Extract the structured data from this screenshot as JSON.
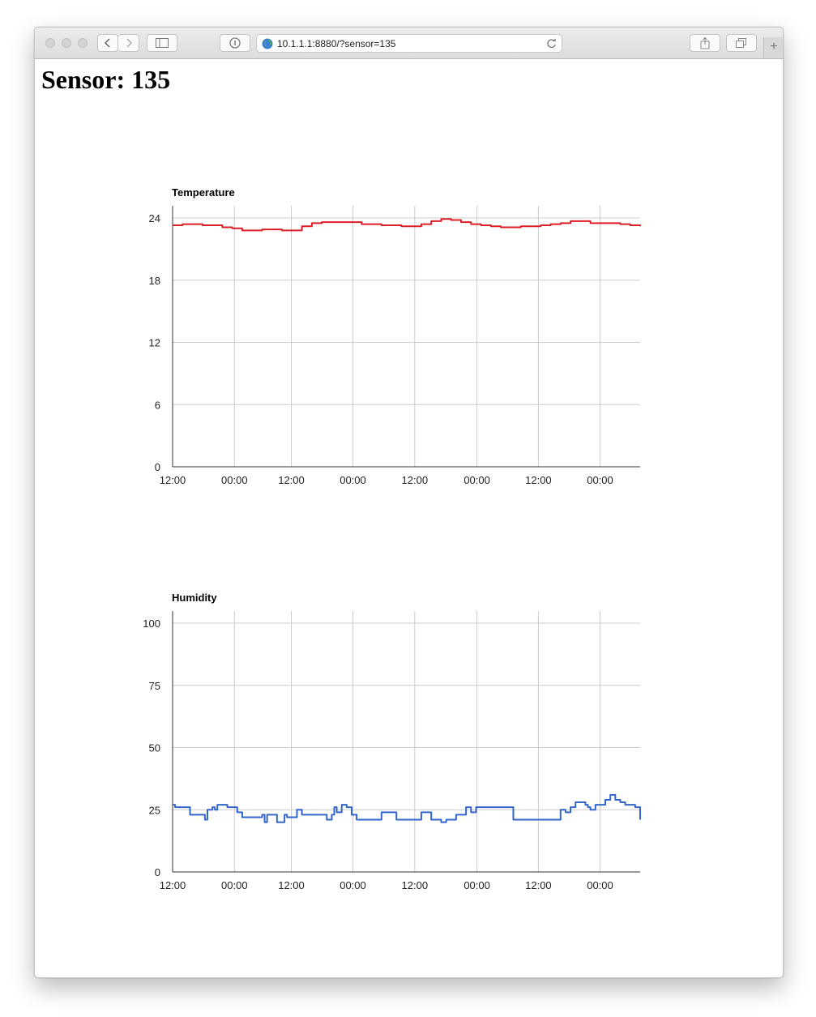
{
  "browser": {
    "url": "10.1.1.1:8880/?sensor=135"
  },
  "page": {
    "heading": "Sensor: 135"
  },
  "chart_data": [
    {
      "type": "line",
      "title": "Temperature",
      "ylim": [
        0,
        24
      ],
      "yticks": [
        "0",
        "6",
        "12",
        "18",
        "24"
      ],
      "xticks": [
        "12:00",
        "00:00",
        "12:00",
        "00:00",
        "12:00",
        "00:00",
        "12:00",
        "00:00"
      ],
      "legend_position": "bottom",
      "grid": true,
      "series": [
        {
          "name": "Temperature",
          "color": "#dc1f26",
          "x": [
            0,
            4,
            8,
            12,
            16,
            20,
            24,
            28,
            32,
            36,
            40,
            44,
            48,
            52,
            56,
            60,
            64,
            68,
            72,
            76,
            80,
            84,
            88,
            92,
            96,
            100,
            104,
            108,
            112,
            116,
            120,
            124,
            128,
            132,
            136,
            140,
            144,
            148,
            152,
            156,
            160,
            164,
            168,
            172,
            176,
            180,
            184,
            188
          ],
          "y": [
            23.3,
            23.4,
            23.4,
            23.3,
            23.3,
            23.1,
            23.0,
            22.8,
            22.8,
            22.9,
            22.9,
            22.8,
            22.8,
            23.2,
            23.5,
            23.6,
            23.6,
            23.6,
            23.6,
            23.4,
            23.4,
            23.3,
            23.3,
            23.2,
            23.2,
            23.4,
            23.7,
            23.9,
            23.8,
            23.6,
            23.4,
            23.3,
            23.2,
            23.1,
            23.1,
            23.2,
            23.2,
            23.3,
            23.4,
            23.5,
            23.7,
            23.7,
            23.5,
            23.5,
            23.5,
            23.4,
            23.3,
            23.2
          ]
        }
      ]
    },
    {
      "type": "line",
      "title": "Humidity",
      "ylim": [
        0,
        100
      ],
      "yticks": [
        "0",
        "25",
        "50",
        "75",
        "100"
      ],
      "xticks": [
        "12:00",
        "00:00",
        "12:00",
        "00:00",
        "12:00",
        "00:00",
        "12:00",
        "00:00"
      ],
      "legend_position": "bottom",
      "grid": true,
      "series": [
        {
          "name": "Humidity",
          "color": "#3366cc",
          "x": [
            0,
            1,
            5,
            7,
            12,
            13,
            14,
            16,
            17,
            18,
            20,
            22,
            24,
            26,
            28,
            34,
            36,
            37,
            38,
            40,
            42,
            44,
            45,
            46,
            48,
            50,
            52,
            56,
            62,
            63,
            64,
            65,
            66,
            68,
            70,
            72,
            74,
            80,
            84,
            90,
            98,
            100,
            104,
            108,
            110,
            112,
            114,
            116,
            118,
            120,
            122,
            124,
            125,
            126,
            128,
            136,
            137,
            138,
            148,
            154,
            156,
            157,
            158,
            160,
            162,
            166,
            167,
            168,
            170,
            172,
            174,
            176,
            178,
            180,
            182,
            184,
            186,
            187,
            188
          ],
          "y": [
            27,
            26,
            26,
            23,
            23,
            21,
            25,
            26,
            25,
            27,
            27,
            26,
            26,
            24,
            22,
            22,
            23,
            20,
            23,
            23,
            20,
            20,
            23,
            22,
            22,
            25,
            23,
            23,
            21,
            21,
            23,
            26,
            24,
            27,
            26,
            23,
            21,
            21,
            24,
            21,
            21,
            24,
            21,
            20,
            21,
            21,
            23,
            23,
            26,
            24,
            26,
            26,
            26,
            26,
            26,
            26,
            21,
            21,
            21,
            21,
            25,
            25,
            24,
            26,
            28,
            27,
            26,
            25,
            27,
            27,
            29,
            31,
            29,
            28,
            27,
            27,
            26,
            26,
            21
          ]
        }
      ]
    }
  ]
}
